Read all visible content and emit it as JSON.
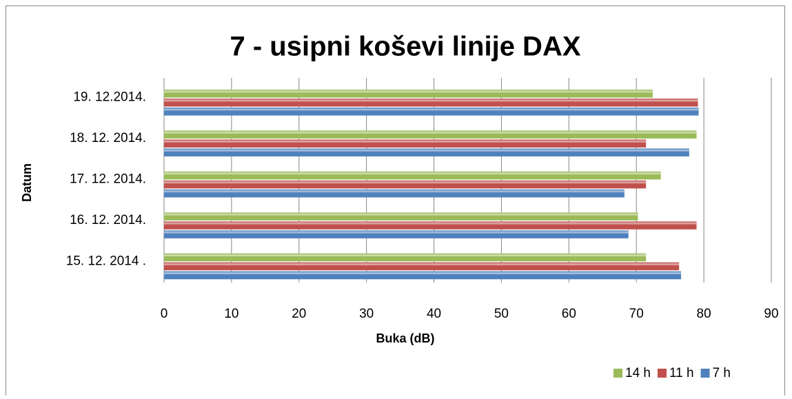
{
  "chart_data": {
    "type": "hbar",
    "title": "7 - usipni koševi linije DAX",
    "x_label": "Buka (dB)",
    "y_label": "Datum",
    "categories": [
      "15. 12. 2014 .",
      "16. 12. 2014.",
      "17. 12. 2014.",
      "18. 12. 2014.",
      "19. 12.2014."
    ],
    "series": [
      {
        "name": "7 h",
        "color": "#4f81bd",
        "values": [
          76.6,
          68.8,
          68.2,
          77.8,
          79.2
        ]
      },
      {
        "name": "11 h",
        "color": "#c0504d",
        "values": [
          76.3,
          78.9,
          71.4,
          71.4,
          79.1
        ]
      },
      {
        "name": "14 h",
        "color": "#9bbb59",
        "values": [
          71.4,
          70.2,
          73.6,
          78.9,
          72.4
        ]
      }
    ],
    "xlim": [
      0,
      90
    ],
    "xticks": [
      0,
      10,
      20,
      30,
      40,
      50,
      60,
      70,
      80,
      90
    ],
    "grid": true,
    "legend": "bottom-right"
  }
}
